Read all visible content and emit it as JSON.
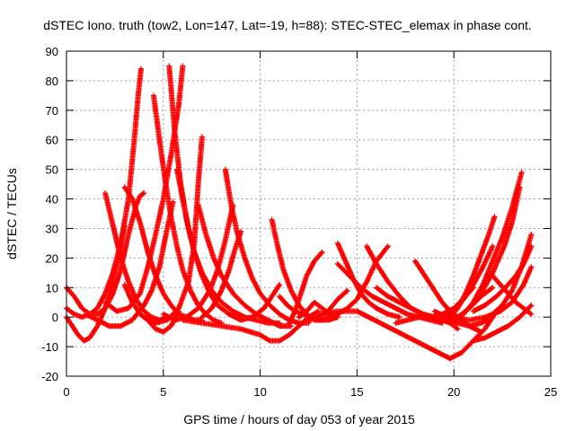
{
  "chart_data": {
    "type": "scatter",
    "title": "dSTEC Iono. truth (tow2, Lon=147, Lat=-19, h=88): STEC-STEC_elemax in phase cont.",
    "xlabel": "GPS time / hours of day 053 of year 2015",
    "ylabel": "dSTEC  / TECUs",
    "xlim": [
      0,
      25
    ],
    "ylim": [
      -20,
      90
    ],
    "x_ticks": [
      "0",
      "5",
      "10",
      "15",
      "20",
      "25"
    ],
    "y_ticks": [
      "-20",
      "-10",
      "0",
      "10",
      "20",
      "30",
      "40",
      "50",
      "60",
      "70",
      "80",
      "90"
    ],
    "grid": true,
    "marker": "plus",
    "color": "#ff0000",
    "series": [
      {
        "x": [
          0.0,
          0.4,
          0.8,
          1.2,
          1.6,
          2.0,
          2.4,
          2.8,
          3.2,
          3.5,
          3.7,
          3.85
        ],
        "y": [
          3,
          1,
          0,
          1,
          3,
          8,
          15,
          25,
          40,
          60,
          75,
          84
        ]
      },
      {
        "x": [
          0.0,
          0.4,
          0.8,
          1.2,
          1.6,
          2.0,
          2.4,
          2.8,
          3.2,
          3.6,
          3.8,
          4.0
        ],
        "y": [
          10,
          7,
          3,
          1,
          1,
          3,
          8,
          16,
          28,
          38,
          41,
          42
        ]
      },
      {
        "x": [
          0.0,
          0.3,
          0.6,
          0.9,
          1.2,
          1.6,
          2.0,
          2.4,
          2.8,
          3.0
        ],
        "y": [
          0,
          -3,
          -6,
          -8,
          -7,
          -3,
          3,
          12,
          24,
          31
        ]
      },
      {
        "x": [
          2.0,
          2.4,
          2.8,
          3.2,
          3.6,
          4.0,
          4.4,
          4.8,
          5.2
        ],
        "y": [
          42,
          31,
          20,
          12,
          6,
          2,
          0,
          -1,
          0
        ]
      },
      {
        "x": [
          1.0,
          1.6,
          2.2,
          2.8,
          3.4,
          4.0,
          4.4,
          4.8,
          5.2,
          5.5
        ],
        "y": [
          1,
          -1,
          -3,
          -3,
          -1,
          4,
          9,
          17,
          30,
          39
        ]
      },
      {
        "x": [
          3.0,
          3.4,
          3.8,
          4.2,
          4.6,
          5.0,
          5.4,
          5.8,
          6.2,
          6.6,
          7.0
        ],
        "y": [
          44,
          40,
          32,
          22,
          14,
          8,
          4,
          1,
          0,
          -1,
          -1
        ]
      },
      {
        "x": [
          2.0,
          2.6,
          3.2,
          3.8,
          4.2,
          4.6,
          5.0,
          5.4,
          5.8,
          6.0
        ],
        "y": [
          5,
          2,
          3,
          8,
          17,
          28,
          40,
          55,
          72,
          85
        ]
      },
      {
        "x": [
          3.0,
          3.4,
          3.8,
          4.2,
          4.6,
          5.0,
          5.4,
          5.8
        ],
        "y": [
          11,
          5,
          1,
          -1,
          -4,
          -5,
          -3,
          2
        ]
      },
      {
        "x": [
          4.5,
          4.8,
          5.1,
          5.4,
          5.7,
          6.0,
          6.4,
          6.8,
          7.2,
          7.6,
          8.0
        ],
        "y": [
          75,
          60,
          46,
          34,
          24,
          16,
          9,
          4,
          1,
          -1,
          -2
        ]
      },
      {
        "x": [
          5.3,
          5.6,
          5.9,
          6.2,
          6.6,
          7.0,
          7.4,
          7.8,
          8.4,
          9.0
        ],
        "y": [
          85,
          62,
          45,
          33,
          22,
          14,
          8,
          4,
          1,
          -1
        ]
      },
      {
        "x": [
          5.7,
          6.0,
          6.3,
          6.6,
          7.0,
          7.5,
          8.0,
          8.6,
          9.2,
          9.8,
          10.4,
          11.0
        ],
        "y": [
          50,
          40,
          30,
          22,
          15,
          9,
          5,
          2,
          0,
          -1,
          -2,
          -2
        ]
      },
      {
        "x": [
          4.0,
          4.6,
          5.2,
          5.8,
          6.3,
          6.6,
          6.8,
          7.0
        ],
        "y": [
          0,
          -2,
          -1,
          3,
          12,
          25,
          45,
          61
        ]
      },
      {
        "x": [
          6.8,
          7.2,
          7.6,
          8.0,
          8.6,
          9.2,
          9.8,
          10.4,
          11.0,
          11.6
        ],
        "y": [
          38,
          28,
          20,
          14,
          8,
          4,
          1,
          -1,
          -3,
          -3
        ]
      },
      {
        "x": [
          5.0,
          5.6,
          6.2,
          6.8,
          7.4,
          7.8,
          8.2,
          8.6
        ],
        "y": [
          1,
          -1,
          0,
          3,
          9,
          16,
          26,
          38
        ]
      },
      {
        "x": [
          8.2,
          8.5,
          8.8,
          9.2,
          9.6,
          10.0,
          10.5,
          11.0,
          11.5,
          12.0,
          12.5
        ],
        "y": [
          50,
          38,
          29,
          20,
          13,
          8,
          4,
          1,
          -1,
          -2,
          -2
        ]
      },
      {
        "x": [
          7.0,
          7.5,
          8.0,
          8.4,
          8.7,
          9.0
        ],
        "y": [
          0,
          3,
          9,
          16,
          23,
          29
        ]
      },
      {
        "x": [
          6.0,
          7.0,
          8.0,
          9.0,
          10.0,
          10.5,
          11.0,
          11.5,
          12.0,
          12.5,
          13.0
        ],
        "y": [
          -1,
          -2,
          -3,
          -4,
          -6,
          -8,
          -8,
          -6,
          -3,
          0,
          2
        ]
      },
      {
        "x": [
          10.6,
          10.9,
          11.2,
          11.6,
          12.0,
          12.4,
          12.8,
          13.2,
          13.6
        ],
        "y": [
          33,
          24,
          16,
          9,
          4,
          1,
          -1,
          -1,
          0
        ]
      },
      {
        "x": [
          9.0,
          9.6,
          10.2,
          10.6,
          11.0
        ],
        "y": [
          -1,
          0,
          3,
          7,
          11
        ]
      },
      {
        "x": [
          11.0,
          11.4,
          11.8,
          12.2,
          12.6,
          13.0,
          13.5,
          14.0
        ],
        "y": [
          7,
          4,
          2,
          1,
          0,
          -1,
          -1,
          0
        ]
      },
      {
        "x": [
          11.5,
          11.8,
          12.1,
          12.4,
          12.8,
          13.2
        ],
        "y": [
          -2,
          2,
          8,
          14,
          19,
          22
        ]
      },
      {
        "x": [
          12.0,
          12.4,
          12.8,
          13.2,
          13.6,
          14.0
        ],
        "y": [
          0,
          2,
          5,
          3,
          1,
          0
        ]
      },
      {
        "x": [
          12.5,
          13.0,
          13.5,
          14.0,
          14.5
        ],
        "y": [
          -1,
          0,
          2,
          6,
          9
        ]
      },
      {
        "x": [
          14.0,
          14.4,
          14.8,
          15.2,
          15.6,
          16.0,
          16.6,
          17.2
        ],
        "y": [
          25,
          19,
          13,
          8,
          5,
          3,
          1,
          0
        ]
      },
      {
        "x": [
          13.5,
          14.0,
          14.5,
          15.0,
          15.5,
          16.0,
          16.6
        ],
        "y": [
          0,
          1,
          3,
          6,
          12,
          19,
          24
        ]
      },
      {
        "x": [
          14.0,
          14.6,
          15.2,
          15.8,
          16.4,
          17.0,
          17.6,
          18.2,
          18.8,
          19.4
        ],
        "y": [
          18,
          14,
          10,
          7,
          5,
          3,
          1,
          0,
          -1,
          -2
        ]
      },
      {
        "x": [
          15.5,
          16.0,
          16.6,
          17.2,
          17.8,
          18.4,
          19.0
        ],
        "y": [
          24,
          18,
          12,
          7,
          3,
          1,
          0
        ]
      },
      {
        "x": [
          13.0,
          14.0,
          15.0,
          15.6,
          16.2,
          16.8,
          17.4,
          18.0,
          18.6,
          19.2,
          19.8,
          20.4,
          21.0,
          21.6,
          22.2
        ],
        "y": [
          1,
          2,
          2,
          0,
          -2,
          -4,
          -6,
          -8,
          -10,
          -12,
          -14,
          -12,
          -8,
          -4,
          2
        ]
      },
      {
        "x": [
          16.0,
          16.6,
          17.2,
          17.8,
          18.4,
          19.0,
          19.4,
          19.8,
          20.2
        ],
        "y": [
          10,
          7,
          5,
          3,
          1,
          0,
          -1,
          -2,
          -4
        ]
      },
      {
        "x": [
          17.0,
          17.6,
          18.2,
          18.8,
          19.4,
          20.0,
          20.6,
          21.0
        ],
        "y": [
          -2,
          -1,
          0,
          0,
          1,
          3,
          7,
          10
        ]
      },
      {
        "x": [
          18.0,
          18.5,
          19.0,
          19.4,
          19.8,
          20.2,
          20.8,
          21.4
        ],
        "y": [
          19,
          14,
          9,
          5,
          2,
          0,
          -3,
          -5
        ]
      },
      {
        "x": [
          19.0,
          19.6,
          20.2,
          20.8,
          21.4,
          22.0
        ],
        "y": [
          -1,
          -1,
          0,
          3,
          7,
          10
        ]
      },
      {
        "x": [
          19.5,
          20.0,
          20.5,
          21.0,
          21.5,
          22.0
        ],
        "y": [
          0,
          2,
          6,
          11,
          17,
          24
        ]
      },
      {
        "x": [
          20.0,
          20.5,
          21.0,
          21.5,
          22.0,
          22.5,
          23.0,
          23.5
        ],
        "y": [
          -1,
          1,
          5,
          11,
          19,
          27,
          37,
          49
        ]
      },
      {
        "x": [
          19.8,
          20.2,
          20.6,
          21.0,
          21.4,
          21.8,
          22.1
        ],
        "y": [
          0,
          3,
          8,
          14,
          21,
          28,
          34
        ]
      },
      {
        "x": [
          21.0,
          21.6,
          22.2,
          22.8,
          23.4,
          24.0
        ],
        "y": [
          -8,
          -7,
          -5,
          -3,
          0,
          4
        ]
      },
      {
        "x": [
          20.0,
          20.8,
          21.6,
          22.4,
          23.0,
          23.6,
          24.0
        ],
        "y": [
          0,
          -1,
          0,
          2,
          5,
          11,
          17
        ]
      },
      {
        "x": [
          21.5,
          22.0,
          22.5,
          23.0,
          23.5,
          24.0
        ],
        "y": [
          -1,
          1,
          4,
          9,
          17,
          28
        ]
      },
      {
        "x": [
          21.0,
          21.6,
          22.2,
          22.8,
          23.2,
          23.6,
          24.0
        ],
        "y": [
          2,
          4,
          7,
          11,
          14,
          18,
          24
        ]
      },
      {
        "x": [
          22.0,
          22.4,
          22.8,
          23.2,
          23.6,
          24.0
        ],
        "y": [
          14,
          11,
          8,
          5,
          3,
          1
        ]
      },
      {
        "x": [
          20.2,
          20.8,
          21.4,
          22.0,
          22.6,
          23.0,
          23.4
        ],
        "y": [
          0,
          3,
          8,
          15,
          24,
          32,
          44
        ]
      },
      {
        "x": [
          19.0,
          19.6,
          20.2,
          20.8,
          21.4,
          22.0
        ],
        "y": [
          2,
          0,
          -2,
          -3,
          -2,
          0
        ]
      }
    ]
  }
}
